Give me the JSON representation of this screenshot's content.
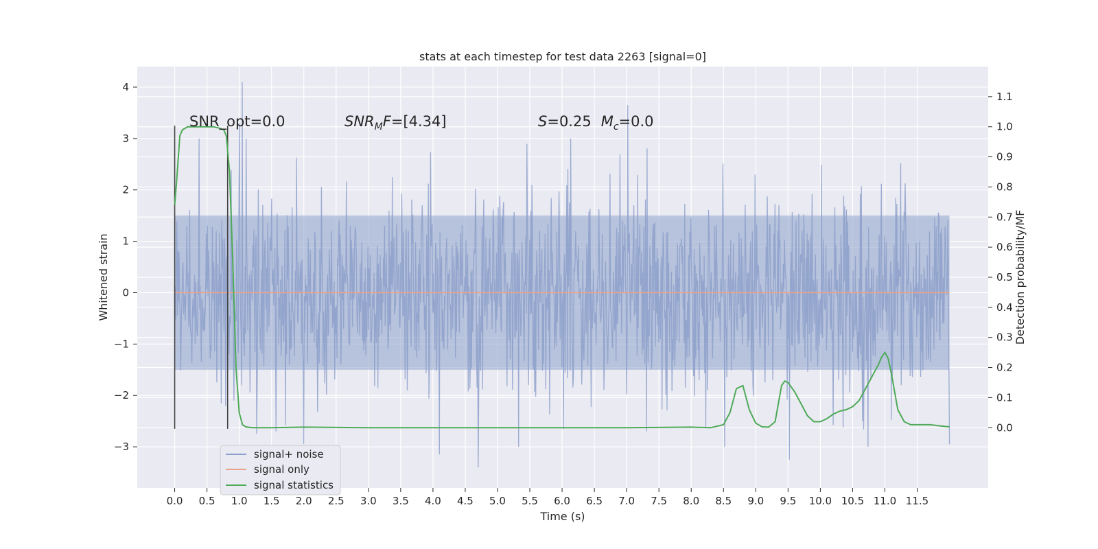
{
  "chart_data": {
    "type": "line",
    "title": "stats at each timestep for test data 2263 [signal=0]",
    "xlabel": "Time (s)",
    "ylabel": "Whitened strain",
    "y2label": "Detection probability/MF",
    "xlim": [
      -0.58,
      12.6
    ],
    "ylim": [
      -3.8,
      4.4
    ],
    "y2lim": [
      -0.2,
      1.2
    ],
    "x_ticks": [
      "0.0",
      "0.5",
      "1.0",
      "1.5",
      "2.0",
      "2.5",
      "3.0",
      "3.5",
      "4.0",
      "4.5",
      "5.0",
      "5.5",
      "6.0",
      "6.5",
      "7.0",
      "7.5",
      "8.0",
      "8.5",
      "9.0",
      "9.5",
      "10.0",
      "10.5",
      "11.0",
      "11.5"
    ],
    "y_ticks": [
      "4",
      "3",
      "2",
      "1",
      "0",
      "−1",
      "−2",
      "−3"
    ],
    "y_tick_values": [
      4,
      3,
      2,
      1,
      0,
      -1,
      -2,
      -3
    ],
    "y2_ticks": [
      "1.1",
      "1.0",
      "0.9",
      "0.8",
      "0.7",
      "0.6",
      "0.5",
      "0.4",
      "0.3",
      "0.2",
      "0.1",
      "0.0"
    ],
    "y2_tick_values": [
      1.1,
      1.0,
      0.9,
      0.8,
      0.7,
      0.6,
      0.5,
      0.4,
      0.3,
      0.2,
      0.1,
      0.0
    ],
    "grid": true,
    "legend_position": "lower-left",
    "series": [
      {
        "name": "signal+ noise",
        "color": "#8da0cb",
        "x_range": [
          0.0,
          12.0
        ],
        "description": "whitened strain noise, roughly within ±1.5 with spikes up to about 4.1 and down to about −3.4",
        "core_amplitude": 1.5,
        "spikes": [
          [
            1.05,
            4.1
          ],
          [
            7.02,
            3.65
          ],
          [
            1.0,
            3.3
          ],
          [
            4.7,
            -3.4
          ],
          [
            9.52,
            -3.25
          ],
          [
            4.1,
            -3.15
          ],
          [
            2.0,
            -2.95
          ],
          [
            12.0,
            -2.95
          ]
        ]
      },
      {
        "name": "signal only",
        "color": "#e8a48b",
        "x": [
          0.0,
          12.0
        ],
        "y": [
          0.0,
          0.0
        ]
      },
      {
        "name": "signal statistics",
        "color": "#4daa57",
        "axis": "right",
        "x": [
          0.0,
          0.03,
          0.08,
          0.12,
          0.2,
          0.3,
          0.45,
          0.6,
          0.7,
          0.76,
          0.8,
          0.85,
          0.9,
          0.95,
          1.0,
          1.05,
          1.1,
          1.2,
          1.5,
          2.0,
          3.0,
          5.0,
          7.0,
          8.0,
          8.3,
          8.5,
          8.6,
          8.7,
          8.8,
          8.85,
          8.9,
          9.0,
          9.1,
          9.2,
          9.3,
          9.35,
          9.4,
          9.45,
          9.5,
          9.6,
          9.7,
          9.8,
          9.9,
          10.0,
          10.1,
          10.2,
          10.3,
          10.4,
          10.5,
          10.6,
          10.7,
          10.8,
          10.9,
          10.95,
          11.0,
          11.05,
          11.1,
          11.15,
          11.2,
          11.3,
          11.4,
          11.5,
          11.7,
          11.9,
          12.0
        ],
        "y": [
          0.74,
          0.82,
          0.97,
          0.99,
          1.0,
          1.0,
          1.0,
          1.0,
          0.995,
          0.99,
          0.97,
          0.85,
          0.55,
          0.2,
          0.05,
          0.01,
          0.003,
          0.0,
          0.0,
          0.002,
          0.0,
          0.0,
          0.0,
          0.002,
          0.0,
          0.01,
          0.05,
          0.13,
          0.14,
          0.1,
          0.06,
          0.015,
          0.003,
          0.002,
          0.02,
          0.08,
          0.14,
          0.155,
          0.15,
          0.12,
          0.08,
          0.04,
          0.02,
          0.02,
          0.03,
          0.045,
          0.055,
          0.06,
          0.07,
          0.09,
          0.13,
          0.17,
          0.21,
          0.235,
          0.25,
          0.23,
          0.18,
          0.12,
          0.06,
          0.02,
          0.01,
          0.01,
          0.01,
          0.005,
          0.003
        ]
      }
    ],
    "vertical_lines": [
      {
        "x": 0.0,
        "y": [
          -2.65,
          3.25
        ],
        "color": "#444444"
      },
      {
        "x": 0.82,
        "y": [
          -2.65,
          3.25
        ],
        "color": "#444444"
      }
    ],
    "annotations": [
      {
        "id": "snr_opt",
        "text": "SNR_opt=0.0"
      },
      {
        "id": "snr_mf",
        "text_prefix": "SNR",
        "text_sub": "M",
        "text_mid": "F",
        "text_suffix": "=[4.34]"
      },
      {
        "id": "s_mc",
        "s_label": "S",
        "s_value": "=0.25",
        "mc_label": "M",
        "mc_sub": "c",
        "mc_value": "=0.0"
      }
    ]
  }
}
